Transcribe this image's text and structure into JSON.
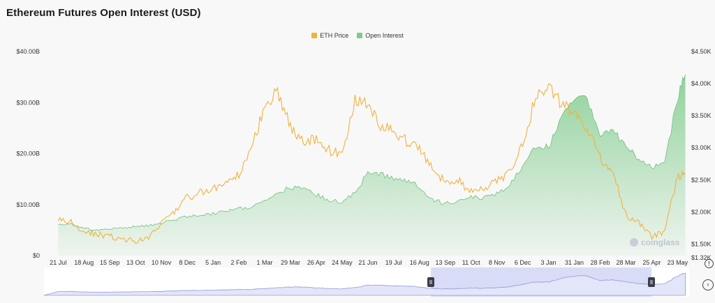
{
  "title": "Ethereum Futures Open Interest (USD)",
  "watermark": "coinglass",
  "colors": {
    "eth_price": "#f0b23e",
    "open_interest": "#7fcb8b",
    "navigator_fill": "#e3e6f8",
    "navigator_line": "#8e97dd",
    "navigator_selected": "#d9dcf6"
  },
  "controls": {
    "help_icon": "!",
    "scroll_icon": "‹"
  },
  "chart_data": {
    "type": "area",
    "title": "Ethereum Futures Open Interest (USD)",
    "legend": [
      "ETH Price",
      "Open Interest"
    ],
    "legend_position": "top-center",
    "grid": false,
    "x_ticks": [
      "21 Jul",
      "18 Aug",
      "15 Sep",
      "13 Oct",
      "10 Nov",
      "8 Dec",
      "5 Jan",
      "2 Feb",
      "1 Mar",
      "29 Mar",
      "26 Apr",
      "24 May",
      "21 Jun",
      "19 Jul",
      "16 Aug",
      "13 Sep",
      "11 Oct",
      "8 Nov",
      "6 Dec",
      "3 Jan",
      "31 Jan",
      "28 Feb",
      "28 Mar",
      "25 Apr",
      "23 May"
    ],
    "y_left": {
      "ticks": [
        "$0",
        "$10.00B",
        "$20.00B",
        "$30.00B",
        "$40.00B"
      ],
      "ylim": [
        0,
        40
      ]
    },
    "y_right": {
      "ticks": [
        "$1.32K",
        "$1.50K",
        "$2.00K",
        "$2.50K",
        "$3.00K",
        "$3.50K",
        "$4.00K",
        "$4.50K"
      ],
      "ylim": [
        1320,
        4500
      ]
    },
    "series": [
      {
        "name": "Open Interest",
        "axis": "left",
        "unit": "B",
        "x": [
          0,
          0.5,
          1,
          1.5,
          2,
          2.5,
          3,
          3.5,
          4,
          4.5,
          5,
          5.5,
          6,
          6.5,
          7,
          7.5,
          8,
          8.5,
          9,
          9.5,
          10,
          10.5,
          11,
          11.5,
          12,
          12.5,
          13,
          13.5,
          14,
          14.5,
          15,
          15.5,
          16,
          16.5,
          17,
          17.5,
          18,
          18.5,
          19,
          19.5,
          20,
          20.5,
          21,
          21.5,
          22,
          22.5,
          23,
          23.5,
          24,
          24.3
        ],
        "values": [
          6.0,
          6.2,
          5.3,
          5.0,
          5.2,
          5.4,
          5.7,
          5.9,
          6.4,
          7.1,
          7.6,
          8.0,
          8.2,
          8.6,
          9.2,
          9.5,
          10.6,
          12.3,
          13.4,
          13.2,
          12.0,
          10.8,
          10.6,
          12.2,
          16.3,
          16.2,
          15.0,
          14.5,
          13.6,
          11.0,
          10.2,
          10.6,
          11.5,
          11.2,
          12.1,
          14.0,
          17.5,
          21.0,
          21.2,
          27.5,
          31.0,
          30.5,
          23.6,
          24.2,
          22.0,
          18.5,
          17.3,
          18.1,
          31.0,
          35.5
        ]
      },
      {
        "name": "ETH Price",
        "axis": "right",
        "unit": "USD",
        "x": [
          0,
          0.5,
          1,
          1.5,
          2,
          2.5,
          3,
          3.5,
          4,
          4.5,
          5,
          5.5,
          6,
          6.5,
          7,
          7.5,
          8,
          8.5,
          9,
          9.5,
          10,
          10.5,
          11,
          11.5,
          12,
          12.5,
          13,
          13.5,
          14,
          14.5,
          15,
          15.5,
          16,
          16.5,
          17,
          17.5,
          18,
          18.5,
          19,
          19.5,
          20,
          20.5,
          21,
          21.5,
          22,
          22.5,
          23,
          23.5,
          24,
          24.3
        ],
        "values": [
          1880,
          1840,
          1700,
          1650,
          1620,
          1580,
          1550,
          1600,
          1810,
          2010,
          2220,
          2300,
          2350,
          2420,
          2600,
          3000,
          3650,
          3900,
          3320,
          3100,
          3150,
          2960,
          2900,
          3750,
          3650,
          3350,
          3250,
          3100,
          3000,
          2700,
          2450,
          2500,
          2300,
          2350,
          2480,
          2600,
          3050,
          3800,
          3950,
          3680,
          3520,
          3300,
          2850,
          2600,
          1950,
          1850,
          1600,
          1700,
          2550,
          2580
        ]
      }
    ]
  }
}
